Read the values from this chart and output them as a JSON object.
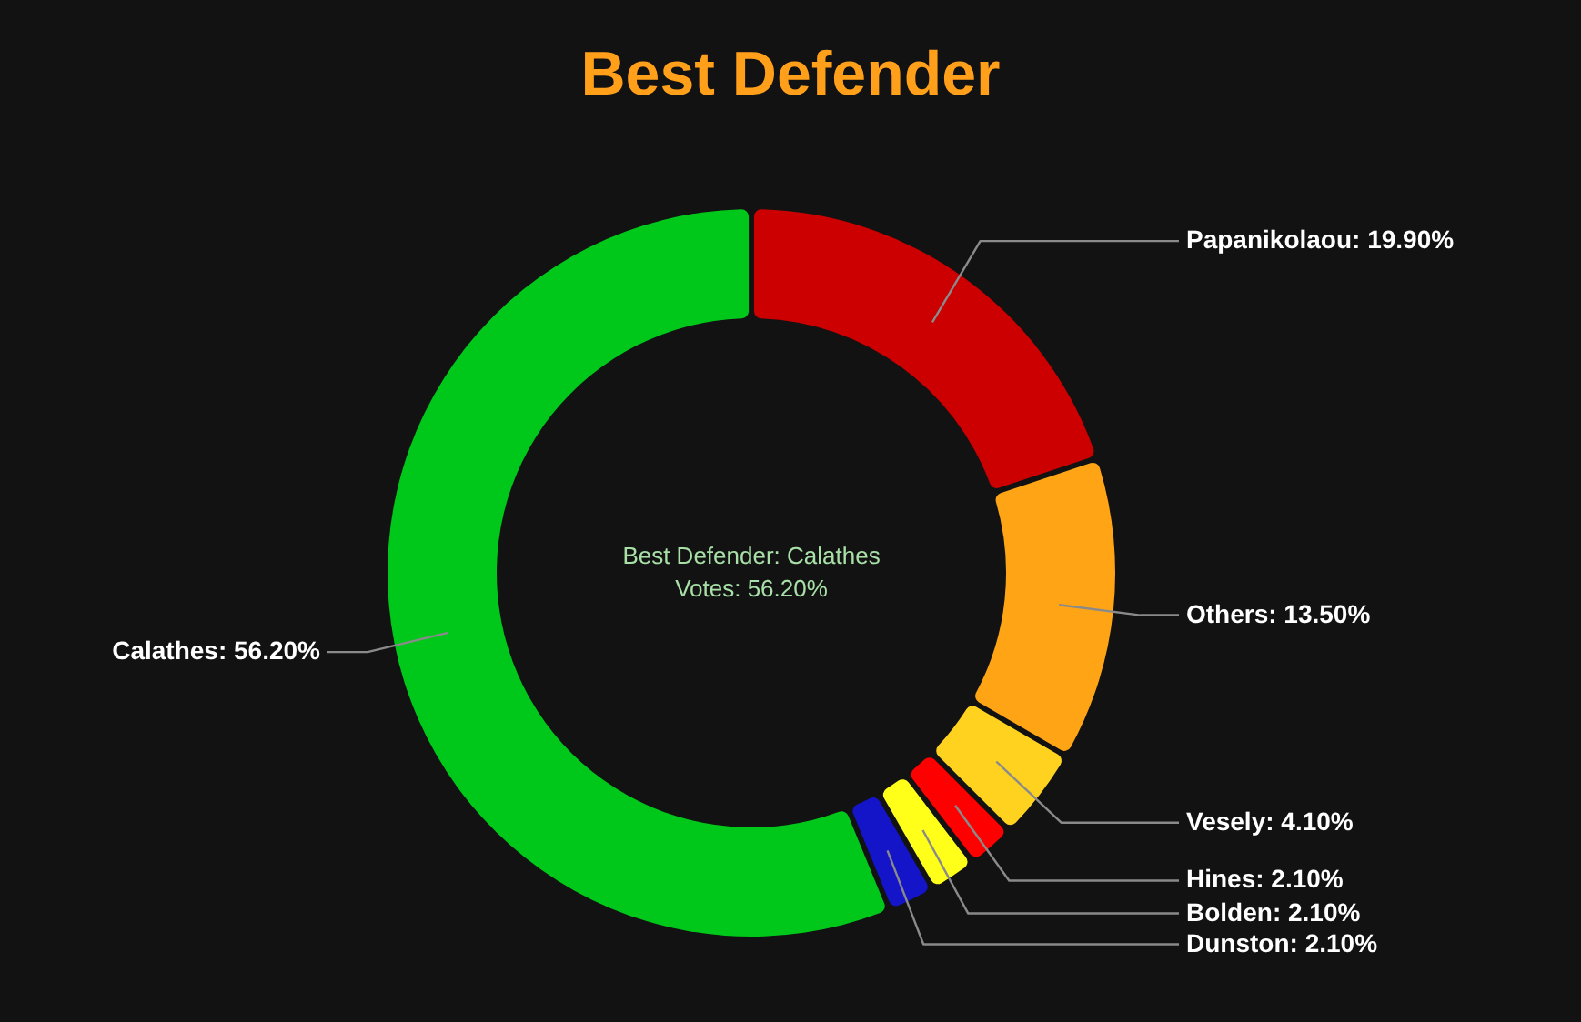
{
  "chart_data": {
    "type": "donut",
    "title": "Best Defender",
    "categories": [
      "Papanikolaou",
      "Others",
      "Vesely",
      "Hines",
      "Bolden",
      "Dunston",
      "Calathes"
    ],
    "values": [
      19.9,
      13.5,
      4.1,
      2.1,
      2.1,
      2.1,
      56.2
    ],
    "colors": [
      "#cc0000",
      "#ffa515",
      "#ffd21f",
      "#ff0000",
      "#ffff1a",
      "#1414c8",
      "#00c81a"
    ],
    "value_labels": [
      "19.90%",
      "13.50%",
      "4.10%",
      "2.10%",
      "2.10%",
      "2.10%",
      "56.20%"
    ],
    "annotations": [
      "Best Defender: Calathes",
      "Votes: 56.20%"
    ]
  }
}
